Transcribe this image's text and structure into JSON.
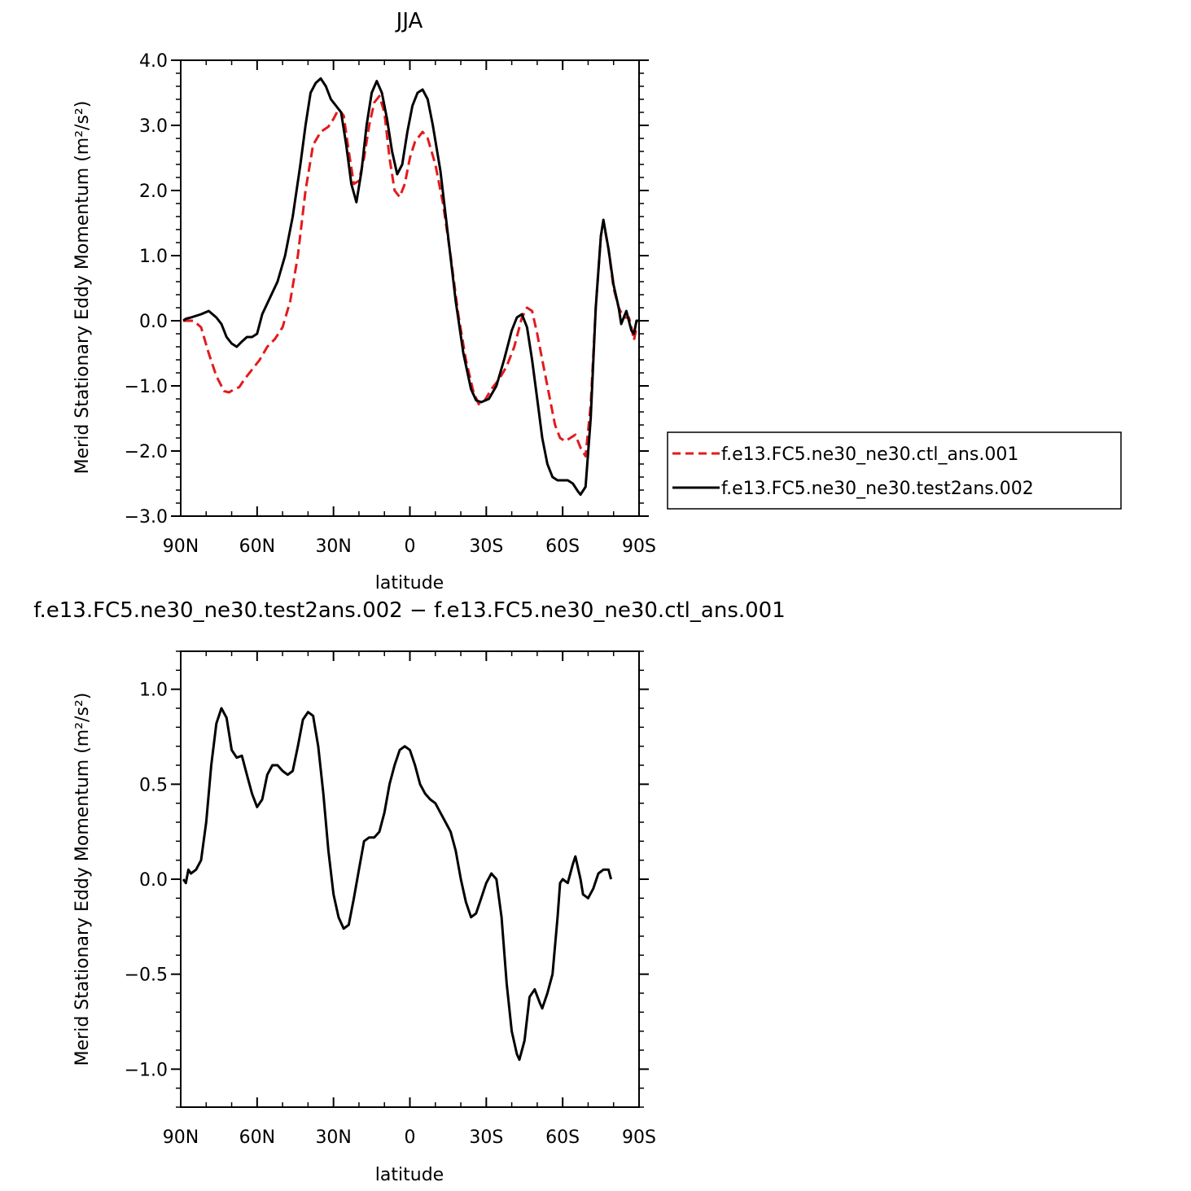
{
  "chart_data": [
    {
      "type": "line",
      "title": "JJA",
      "xlabel": "latitude",
      "ylabel": "Merid Stationary Eddy Momentum (m²/s²)",
      "x_ticks": [
        {
          "value": 90,
          "label": "90N"
        },
        {
          "value": 60,
          "label": "60N"
        },
        {
          "value": 30,
          "label": "30N"
        },
        {
          "value": 0,
          "label": "0"
        },
        {
          "value": -30,
          "label": "30S"
        },
        {
          "value": -60,
          "label": "60S"
        },
        {
          "value": -90,
          "label": "90S"
        }
      ],
      "xlim": [
        90,
        -90
      ],
      "ylim": [
        -3.0,
        4.0
      ],
      "y_ticks": [
        {
          "value": 4.0,
          "label": "4.0"
        },
        {
          "value": 3.0,
          "label": "3.0"
        },
        {
          "value": 2.0,
          "label": "2.0"
        },
        {
          "value": 1.0,
          "label": "1.0"
        },
        {
          "value": 0.0,
          "label": "0.0"
        },
        {
          "value": -1.0,
          "label": "−1.0"
        },
        {
          "value": -2.0,
          "label": "−2.0"
        },
        {
          "value": -3.0,
          "label": "−3.0"
        }
      ],
      "legend_position": "right",
      "series": [
        {
          "name": "f.e13.FC5.ne30_ne30.ctl_ans.001",
          "color": "#e31a1c",
          "dash": "dashed",
          "points": [
            [
              89,
              0.0
            ],
            [
              85,
              0.0
            ],
            [
              82,
              -0.1
            ],
            [
              79,
              -0.5
            ],
            [
              76,
              -0.85
            ],
            [
              73,
              -1.08
            ],
            [
              71,
              -1.1
            ],
            [
              69,
              -1.05
            ],
            [
              67,
              -1.02
            ],
            [
              65,
              -0.9
            ],
            [
              62,
              -0.75
            ],
            [
              59,
              -0.6
            ],
            [
              56,
              -0.4
            ],
            [
              53,
              -0.28
            ],
            [
              50,
              -0.1
            ],
            [
              47,
              0.3
            ],
            [
              44,
              1.0
            ],
            [
              41,
              2.0
            ],
            [
              38,
              2.7
            ],
            [
              35,
              2.9
            ],
            [
              32,
              2.98
            ],
            [
              30,
              3.1
            ],
            [
              28,
              3.25
            ],
            [
              26,
              3.15
            ],
            [
              24,
              2.6
            ],
            [
              22,
              2.1
            ],
            [
              20,
              2.15
            ],
            [
              18,
              2.5
            ],
            [
              16,
              3.0
            ],
            [
              14,
              3.35
            ],
            [
              12,
              3.45
            ],
            [
              10,
              3.2
            ],
            [
              8,
              2.5
            ],
            [
              6,
              2.0
            ],
            [
              4,
              1.9
            ],
            [
              2,
              2.1
            ],
            [
              0,
              2.5
            ],
            [
              -2,
              2.75
            ],
            [
              -5,
              2.9
            ],
            [
              -7,
              2.8
            ],
            [
              -10,
              2.4
            ],
            [
              -13,
              1.8
            ],
            [
              -16,
              1.0
            ],
            [
              -19,
              0.1
            ],
            [
              -22,
              -0.6
            ],
            [
              -25,
              -1.1
            ],
            [
              -27,
              -1.28
            ],
            [
              -29,
              -1.25
            ],
            [
              -32,
              -1.05
            ],
            [
              -35,
              -0.9
            ],
            [
              -38,
              -0.7
            ],
            [
              -41,
              -0.4
            ],
            [
              -44,
              0.05
            ],
            [
              -46,
              0.2
            ],
            [
              -48,
              0.15
            ],
            [
              -50,
              -0.2
            ],
            [
              -52,
              -0.6
            ],
            [
              -55,
              -1.2
            ],
            [
              -57,
              -1.6
            ],
            [
              -59,
              -1.8
            ],
            [
              -61,
              -1.85
            ],
            [
              -63,
              -1.8
            ],
            [
              -65,
              -1.75
            ],
            [
              -67,
              -1.95
            ],
            [
              -69,
              -2.08
            ],
            [
              -71,
              -1.3
            ],
            [
              -73,
              0.2
            ],
            [
              -75,
              1.3
            ],
            [
              -76,
              1.52
            ],
            [
              -78,
              1.1
            ],
            [
              -80,
              0.5
            ],
            [
              -82,
              0.2
            ],
            [
              -84,
              0.05
            ],
            [
              -86,
              0.05
            ],
            [
              -87,
              -0.1
            ],
            [
              -88,
              -0.3
            ],
            [
              -89,
              -0.1
            ]
          ]
        },
        {
          "name": "f.e13.FC5.ne30_ne30.test2ans.002",
          "color": "#000000",
          "dash": "solid",
          "points": [
            [
              89,
              0.0
            ],
            [
              88,
              0.03
            ],
            [
              86,
              0.05
            ],
            [
              82,
              0.1
            ],
            [
              79,
              0.15
            ],
            [
              76,
              0.05
            ],
            [
              74,
              -0.05
            ],
            [
              72,
              -0.25
            ],
            [
              70,
              -0.35
            ],
            [
              68,
              -0.4
            ],
            [
              66,
              -0.32
            ],
            [
              64,
              -0.25
            ],
            [
              62,
              -0.25
            ],
            [
              60,
              -0.2
            ],
            [
              58,
              0.1
            ],
            [
              55,
              0.35
            ],
            [
              52,
              0.6
            ],
            [
              49,
              1.0
            ],
            [
              46,
              1.6
            ],
            [
              43,
              2.4
            ],
            [
              41,
              3.0
            ],
            [
              39,
              3.5
            ],
            [
              37,
              3.65
            ],
            [
              35,
              3.72
            ],
            [
              33,
              3.6
            ],
            [
              31,
              3.4
            ],
            [
              29,
              3.3
            ],
            [
              27,
              3.2
            ],
            [
              25,
              2.7
            ],
            [
              23,
              2.1
            ],
            [
              21,
              1.82
            ],
            [
              19,
              2.3
            ],
            [
              17,
              3.0
            ],
            [
              15,
              3.5
            ],
            [
              13,
              3.68
            ],
            [
              11,
              3.5
            ],
            [
              9,
              3.1
            ],
            [
              7,
              2.6
            ],
            [
              5,
              2.25
            ],
            [
              3,
              2.4
            ],
            [
              1,
              2.9
            ],
            [
              -1,
              3.3
            ],
            [
              -3,
              3.5
            ],
            [
              -5,
              3.55
            ],
            [
              -7,
              3.4
            ],
            [
              -9,
              3.0
            ],
            [
              -12,
              2.3
            ],
            [
              -15,
              1.3
            ],
            [
              -18,
              0.3
            ],
            [
              -21,
              -0.5
            ],
            [
              -24,
              -1.05
            ],
            [
              -26,
              -1.22
            ],
            [
              -28,
              -1.25
            ],
            [
              -31,
              -1.2
            ],
            [
              -34,
              -1.0
            ],
            [
              -37,
              -0.6
            ],
            [
              -40,
              -0.15
            ],
            [
              -42,
              0.05
            ],
            [
              -44,
              0.1
            ],
            [
              -46,
              -0.1
            ],
            [
              -48,
              -0.6
            ],
            [
              -50,
              -1.2
            ],
            [
              -52,
              -1.8
            ],
            [
              -54,
              -2.2
            ],
            [
              -56,
              -2.4
            ],
            [
              -58,
              -2.45
            ],
            [
              -62,
              -2.45
            ],
            [
              -64,
              -2.5
            ],
            [
              -66,
              -2.62
            ],
            [
              -67,
              -2.67
            ],
            [
              -69,
              -2.55
            ],
            [
              -71,
              -1.5
            ],
            [
              -73,
              0.2
            ],
            [
              -75,
              1.3
            ],
            [
              -76,
              1.55
            ],
            [
              -78,
              1.1
            ],
            [
              -80,
              0.55
            ],
            [
              -82,
              0.2
            ],
            [
              -83,
              -0.05
            ],
            [
              -84,
              0.05
            ],
            [
              -85,
              0.15
            ],
            [
              -86,
              0.0
            ],
            [
              -87,
              -0.15
            ],
            [
              -88,
              -0.2
            ],
            [
              -89,
              0.0
            ],
            [
              -90,
              0.0
            ]
          ]
        }
      ]
    },
    {
      "type": "line",
      "title": "f.e13.FC5.ne30_ne30.test2ans.002 − f.e13.FC5.ne30_ne30.ctl_ans.001",
      "xlabel": "latitude",
      "ylabel": "Merid Stationary Eddy Momentum (m²/s²)",
      "x_ticks": [
        {
          "value": 90,
          "label": "90N"
        },
        {
          "value": 60,
          "label": "60N"
        },
        {
          "value": 30,
          "label": "30N"
        },
        {
          "value": 0,
          "label": "0"
        },
        {
          "value": -30,
          "label": "30S"
        },
        {
          "value": -60,
          "label": "60S"
        },
        {
          "value": -90,
          "label": "90S"
        }
      ],
      "xlim": [
        90,
        -90
      ],
      "ylim": [
        -1.2,
        1.2
      ],
      "y_ticks": [
        {
          "value": 1.0,
          "label": "1.0"
        },
        {
          "value": 0.5,
          "label": "0.5"
        },
        {
          "value": 0.0,
          "label": "0.0"
        },
        {
          "value": -0.5,
          "label": "−0.5"
        },
        {
          "value": -1.0,
          "label": "−1.0"
        }
      ],
      "series": [
        {
          "name": "",
          "color": "#000000",
          "dash": "solid",
          "points": [
            [
              89,
              0.0
            ],
            [
              88,
              -0.02
            ],
            [
              87,
              0.05
            ],
            [
              86,
              0.03
            ],
            [
              84,
              0.05
            ],
            [
              82,
              0.1
            ],
            [
              80,
              0.3
            ],
            [
              78,
              0.6
            ],
            [
              76,
              0.82
            ],
            [
              74,
              0.9
            ],
            [
              72,
              0.85
            ],
            [
              70,
              0.68
            ],
            [
              68,
              0.64
            ],
            [
              66,
              0.65
            ],
            [
              64,
              0.55
            ],
            [
              62,
              0.45
            ],
            [
              60,
              0.38
            ],
            [
              58,
              0.42
            ],
            [
              56,
              0.55
            ],
            [
              54,
              0.6
            ],
            [
              52,
              0.6
            ],
            [
              50,
              0.57
            ],
            [
              48,
              0.55
            ],
            [
              46,
              0.57
            ],
            [
              44,
              0.7
            ],
            [
              42,
              0.84
            ],
            [
              40,
              0.88
            ],
            [
              38,
              0.86
            ],
            [
              36,
              0.7
            ],
            [
              34,
              0.45
            ],
            [
              32,
              0.15
            ],
            [
              30,
              -0.08
            ],
            [
              28,
              -0.2
            ],
            [
              26,
              -0.26
            ],
            [
              24,
              -0.24
            ],
            [
              22,
              -0.1
            ],
            [
              20,
              0.05
            ],
            [
              18,
              0.2
            ],
            [
              16,
              0.22
            ],
            [
              14,
              0.22
            ],
            [
              12,
              0.25
            ],
            [
              10,
              0.35
            ],
            [
              8,
              0.5
            ],
            [
              6,
              0.6
            ],
            [
              4,
              0.68
            ],
            [
              2,
              0.7
            ],
            [
              0,
              0.68
            ],
            [
              -2,
              0.6
            ],
            [
              -4,
              0.5
            ],
            [
              -6,
              0.45
            ],
            [
              -8,
              0.42
            ],
            [
              -10,
              0.4
            ],
            [
              -12,
              0.35
            ],
            [
              -14,
              0.3
            ],
            [
              -16,
              0.25
            ],
            [
              -18,
              0.15
            ],
            [
              -20,
              0.0
            ],
            [
              -22,
              -0.12
            ],
            [
              -24,
              -0.2
            ],
            [
              -26,
              -0.18
            ],
            [
              -28,
              -0.1
            ],
            [
              -30,
              -0.02
            ],
            [
              -32,
              0.03
            ],
            [
              -34,
              0.0
            ],
            [
              -36,
              -0.2
            ],
            [
              -38,
              -0.55
            ],
            [
              -40,
              -0.8
            ],
            [
              -42,
              -0.92
            ],
            [
              -43,
              -0.95
            ],
            [
              -45,
              -0.85
            ],
            [
              -47,
              -0.62
            ],
            [
              -49,
              -0.58
            ],
            [
              -51,
              -0.65
            ],
            [
              -52,
              -0.68
            ],
            [
              -54,
              -0.6
            ],
            [
              -56,
              -0.5
            ],
            [
              -58,
              -0.2
            ],
            [
              -59,
              -0.02
            ],
            [
              -60,
              0.0
            ],
            [
              -62,
              -0.02
            ],
            [
              -64,
              0.08
            ],
            [
              -65,
              0.12
            ],
            [
              -67,
              0.0
            ],
            [
              -68,
              -0.08
            ],
            [
              -70,
              -0.1
            ],
            [
              -72,
              -0.05
            ],
            [
              -74,
              0.03
            ],
            [
              -76,
              0.05
            ],
            [
              -78,
              0.05
            ],
            [
              -79,
              0.0
            ]
          ]
        }
      ]
    }
  ]
}
